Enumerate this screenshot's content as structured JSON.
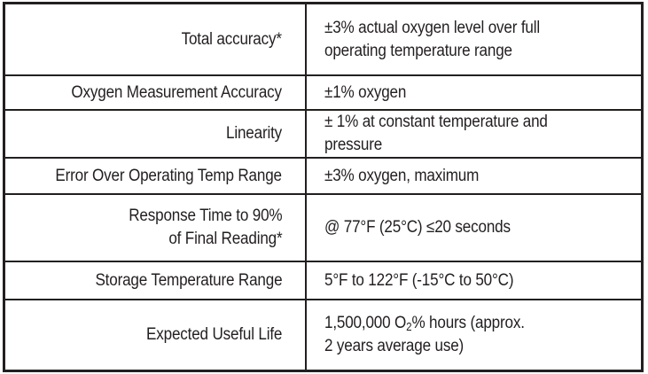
{
  "table": {
    "description": "Oxygen sensor specifications table",
    "colors": {
      "border": "#231f20",
      "text": "#231f20",
      "background": "#ffffff"
    },
    "rows": [
      {
        "label": "Total accuracy*",
        "value_lines": [
          "±3% actual oxygen level over full",
          "operating temperature range"
        ]
      },
      {
        "label": "Oxygen Measurement Accuracy",
        "value": "±1% oxygen"
      },
      {
        "label": "Linearity",
        "value": "± 1% at constant temperature and pressure"
      },
      {
        "label": "Error Over Operating Temp Range",
        "value": "±3% oxygen, maximum"
      },
      {
        "label_lines": [
          "Response Time to 90%",
          "of Final Reading*"
        ],
        "value": "@ 77°F (25°C) ≤20 seconds"
      },
      {
        "label": "Storage Temperature Range",
        "value": "5°F to 122°F (-15°C to 50°C)"
      },
      {
        "label": "Expected Useful Life",
        "value_pre": "1,500,000 O",
        "value_sub": "2",
        "value_post": "% hours (approx.",
        "value_line2": "2 years average use)"
      }
    ]
  }
}
